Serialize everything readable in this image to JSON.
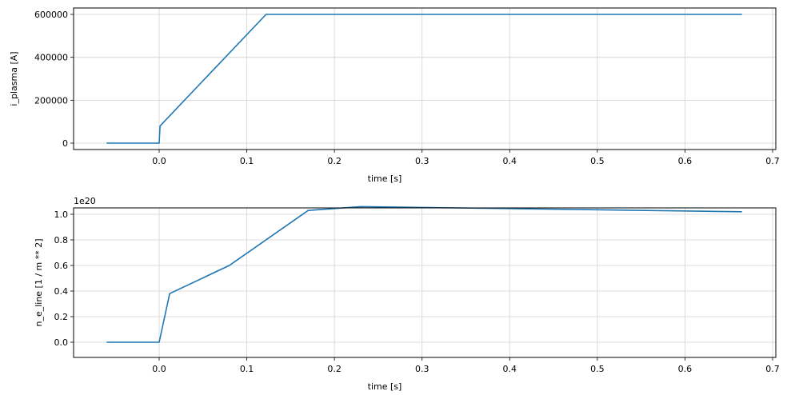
{
  "chart_data": [
    {
      "type": "line",
      "title": "",
      "xlabel": "time [s]",
      "ylabel": "i_plasma [A]",
      "xlim": [
        -0.093,
        0.7
      ],
      "ylim": [
        -30000,
        630000
      ],
      "grid": true,
      "xticks": [
        "0.0",
        "0.1",
        "0.2",
        "0.3",
        "0.4",
        "0.5",
        "0.6",
        "0.7"
      ],
      "yticks": [
        "0",
        "200000",
        "400000",
        "600000"
      ],
      "series": [
        {
          "name": "i_plasma",
          "color": "#1f77b4",
          "x": [
            -0.06,
            0.0,
            0.001,
            0.122,
            0.665
          ],
          "y": [
            0,
            0,
            80000,
            600000,
            600000
          ]
        }
      ]
    },
    {
      "type": "line",
      "title": "",
      "xlabel": "time [s]",
      "ylabel": "n_e_line [1 / m ** 2]",
      "offset_label": "1e20",
      "xlim": [
        -0.093,
        0.7
      ],
      "ylim": [
        -0.05,
        1.11
      ],
      "grid": true,
      "xticks": [
        "0.0",
        "0.1",
        "0.2",
        "0.3",
        "0.4",
        "0.5",
        "0.6",
        "0.7"
      ],
      "yticks": [
        "0.0",
        "0.2",
        "0.4",
        "0.6",
        "0.8",
        "1.0"
      ],
      "series": [
        {
          "name": "n_e_line",
          "color": "#1f77b4",
          "x": [
            -0.06,
            0.0,
            0.012,
            0.08,
            0.17,
            0.23,
            0.665
          ],
          "y": [
            0,
            0,
            0.38,
            0.6,
            1.03,
            1.06,
            1.02
          ]
        }
      ]
    }
  ]
}
